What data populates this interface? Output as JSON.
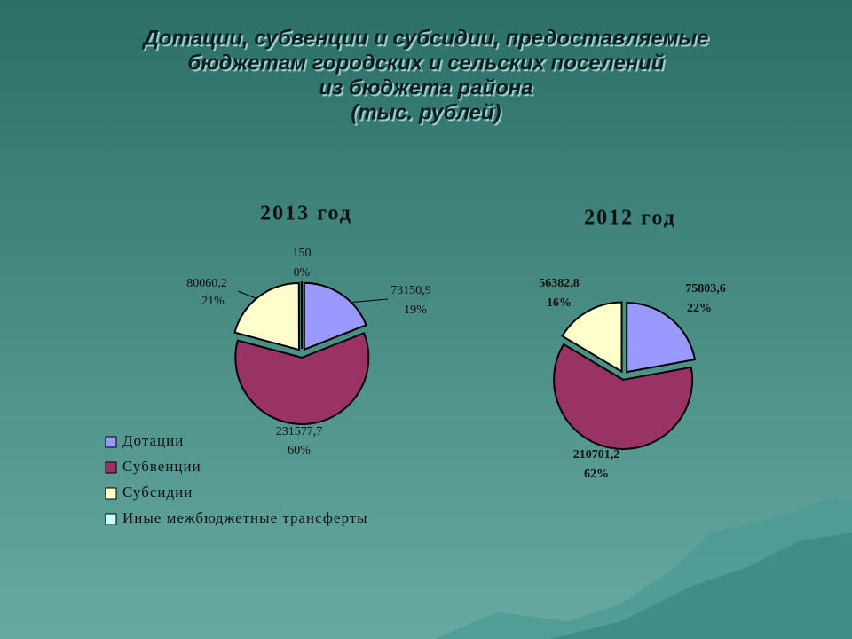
{
  "title": [
    "Дотации, субвенции и субсидии, предоставляемые",
    "бюджетам городских и сельских поселений",
    "из бюджета района",
    "(тыс. рублей)"
  ],
  "chart_data": [
    {
      "type": "pie",
      "title": "2013 год",
      "categories": [
        "Дотации",
        "Субвенции",
        "Субсидии",
        "Иные межбюджетные трансферты"
      ],
      "values": [
        73150.9,
        231577.7,
        80060.2,
        150
      ],
      "value_labels": [
        "73150,9",
        "231577,7",
        "80060,2",
        "150"
      ],
      "percents": [
        {
          "value": 19,
          "label": "19%"
        },
        {
          "value": 60,
          "label": "60%"
        },
        {
          "value": 21,
          "label": "21%"
        },
        {
          "value": 0,
          "label": "0%"
        }
      ],
      "colors": [
        "#9999ff",
        "#993366",
        "#ffffcc",
        "#ccffff"
      ],
      "legend": "bottom-left"
    },
    {
      "type": "pie",
      "title": "2012 год",
      "values": [
        75803.6,
        210701.2,
        56382.8
      ],
      "value_labels": [
        "75803,6",
        "210701,2",
        "56382,8"
      ],
      "percents": [
        {
          "value": 22,
          "label": "22%"
        },
        {
          "value": 62,
          "label": "62%"
        },
        {
          "value": 16,
          "label": "16%"
        }
      ],
      "colors": [
        "#9999ff",
        "#993366",
        "#ffffcc"
      ]
    }
  ]
}
